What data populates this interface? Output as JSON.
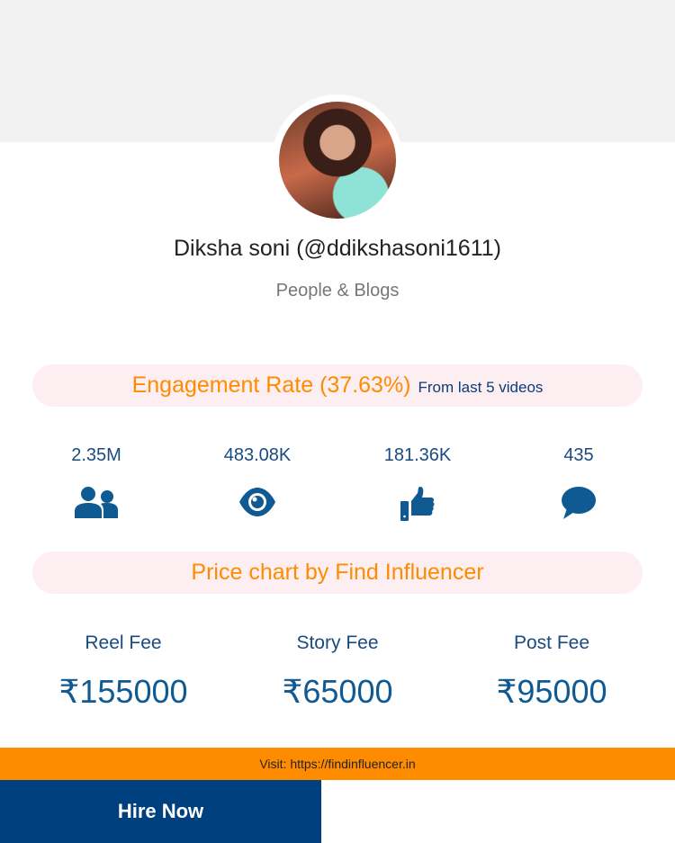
{
  "profile": {
    "name": "Diksha soni (@ddikshasoni1611)",
    "category": "People & Blogs"
  },
  "engagement": {
    "label": "Engagement Rate (37.63%)",
    "sub": "From last 5 videos"
  },
  "stats": [
    {
      "value": "2.35M",
      "icon": "users-icon"
    },
    {
      "value": "483.08K",
      "icon": "eye-icon"
    },
    {
      "value": "181.36K",
      "icon": "thumbs-up-icon"
    },
    {
      "value": "435",
      "icon": "comment-icon"
    }
  ],
  "price": {
    "title": "Price chart by Find Influencer",
    "fees": [
      {
        "label": "Reel Fee",
        "value": "₹155000"
      },
      {
        "label": "Story Fee",
        "value": "₹65000"
      },
      {
        "label": "Post Fee",
        "value": "₹95000"
      }
    ]
  },
  "footer": {
    "visit": "Visit: https://findinfluencer.in",
    "hire": "Hire Now"
  },
  "colors": {
    "accent": "#ff8c00",
    "primary": "#00407e",
    "icon": "#0f5a92"
  }
}
